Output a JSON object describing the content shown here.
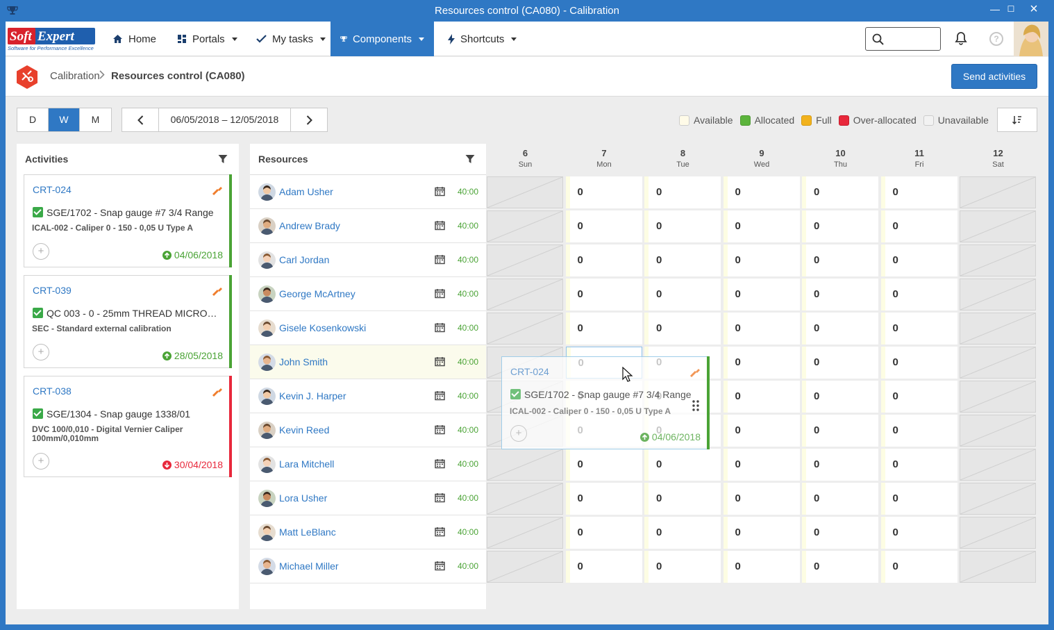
{
  "window": {
    "title": "Resources control (CA080) - Calibration",
    "minimize": "—",
    "maximize": "☐",
    "close": "×"
  },
  "logo": {
    "text": "Soft Expert",
    "tagline": "Software for Performance Excellence"
  },
  "nav": {
    "home": "Home",
    "portals": "Portals",
    "mytasks": "My tasks",
    "components": "Components",
    "shortcuts": "Shortcuts"
  },
  "search": {
    "value": "",
    "placeholder": ""
  },
  "breadcrumb": {
    "parent": "Calibration",
    "current": "Resources control (CA080)"
  },
  "send_button": "Send activities",
  "view_modes": [
    "D",
    "W",
    "M"
  ],
  "active_view": "W",
  "date_range": "06/05/2018 – 12/05/2018",
  "legend": [
    {
      "label": "Available",
      "color": "#fffbe8"
    },
    {
      "label": "Allocated",
      "color": "#5cb43c"
    },
    {
      "label": "Full",
      "color": "#f2b21d"
    },
    {
      "label": "Over-allocated",
      "color": "#e8283b"
    },
    {
      "label": "Unavailable",
      "color": "#f2f2f2"
    }
  ],
  "activities": {
    "title": "Activities",
    "cards": [
      {
        "code": "CRT-024",
        "item": "SGE/1702 - Snap gauge #7 3/4 Range",
        "sub": "ICAL-002 - Caliper 0 - 150 - 0,05 U Type A",
        "due": "04/06/2018",
        "status_color": "#4aa335",
        "due_dir": "up"
      },
      {
        "code": "CRT-039",
        "item": "QC 003 - 0 - 25mm THREAD MICRO…",
        "sub": "SEC - Standard external calibration",
        "due": "28/05/2018",
        "status_color": "#4aa335",
        "due_dir": "up"
      },
      {
        "code": "CRT-038",
        "item": "SGE/1304 - Snap gauge 1338/01",
        "sub": "DVC 100/0,010 - Digital Vernier Caliper 100mm/0,010mm",
        "due": "30/04/2018",
        "status_color": "#e8283b",
        "due_dir": "down"
      }
    ]
  },
  "resources": {
    "title": "Resources",
    "rows": [
      {
        "name": "Adam Usher",
        "hours": "40:00"
      },
      {
        "name": "Andrew Brady",
        "hours": "40:00"
      },
      {
        "name": "Carl Jordan",
        "hours": "40:00"
      },
      {
        "name": "George McArtney",
        "hours": "40:00"
      },
      {
        "name": "Gisele Kosenkowski",
        "hours": "40:00"
      },
      {
        "name": "John Smith",
        "hours": "40:00"
      },
      {
        "name": "Kevin J. Harper",
        "hours": "40:00"
      },
      {
        "name": "Kevin Reed",
        "hours": "40:00"
      },
      {
        "name": "Lara Mitchell",
        "hours": "40:00"
      },
      {
        "name": "Lora Usher",
        "hours": "40:00"
      },
      {
        "name": "Matt LeBlanc",
        "hours": "40:00"
      },
      {
        "name": "Michael Miller",
        "hours": "40:00"
      }
    ]
  },
  "days": [
    {
      "num": "6",
      "name": "Sun",
      "off": true
    },
    {
      "num": "7",
      "name": "Mon",
      "off": false
    },
    {
      "num": "8",
      "name": "Tue",
      "off": false
    },
    {
      "num": "9",
      "name": "Wed",
      "off": false
    },
    {
      "num": "10",
      "name": "Thu",
      "off": false
    },
    {
      "num": "11",
      "name": "Fri",
      "off": false
    },
    {
      "num": "12",
      "name": "Sat",
      "off": true
    }
  ],
  "cell_value": "0",
  "drag": {
    "code": "CRT-024",
    "item": "SGE/1702 - Snap gauge #7 3/4 Range",
    "sub": "ICAL-002 - Caliper 0 - 150 - 0,05 U Type A",
    "due": "04/06/2018",
    "target_resource": "John Smith",
    "target_day": "7"
  }
}
